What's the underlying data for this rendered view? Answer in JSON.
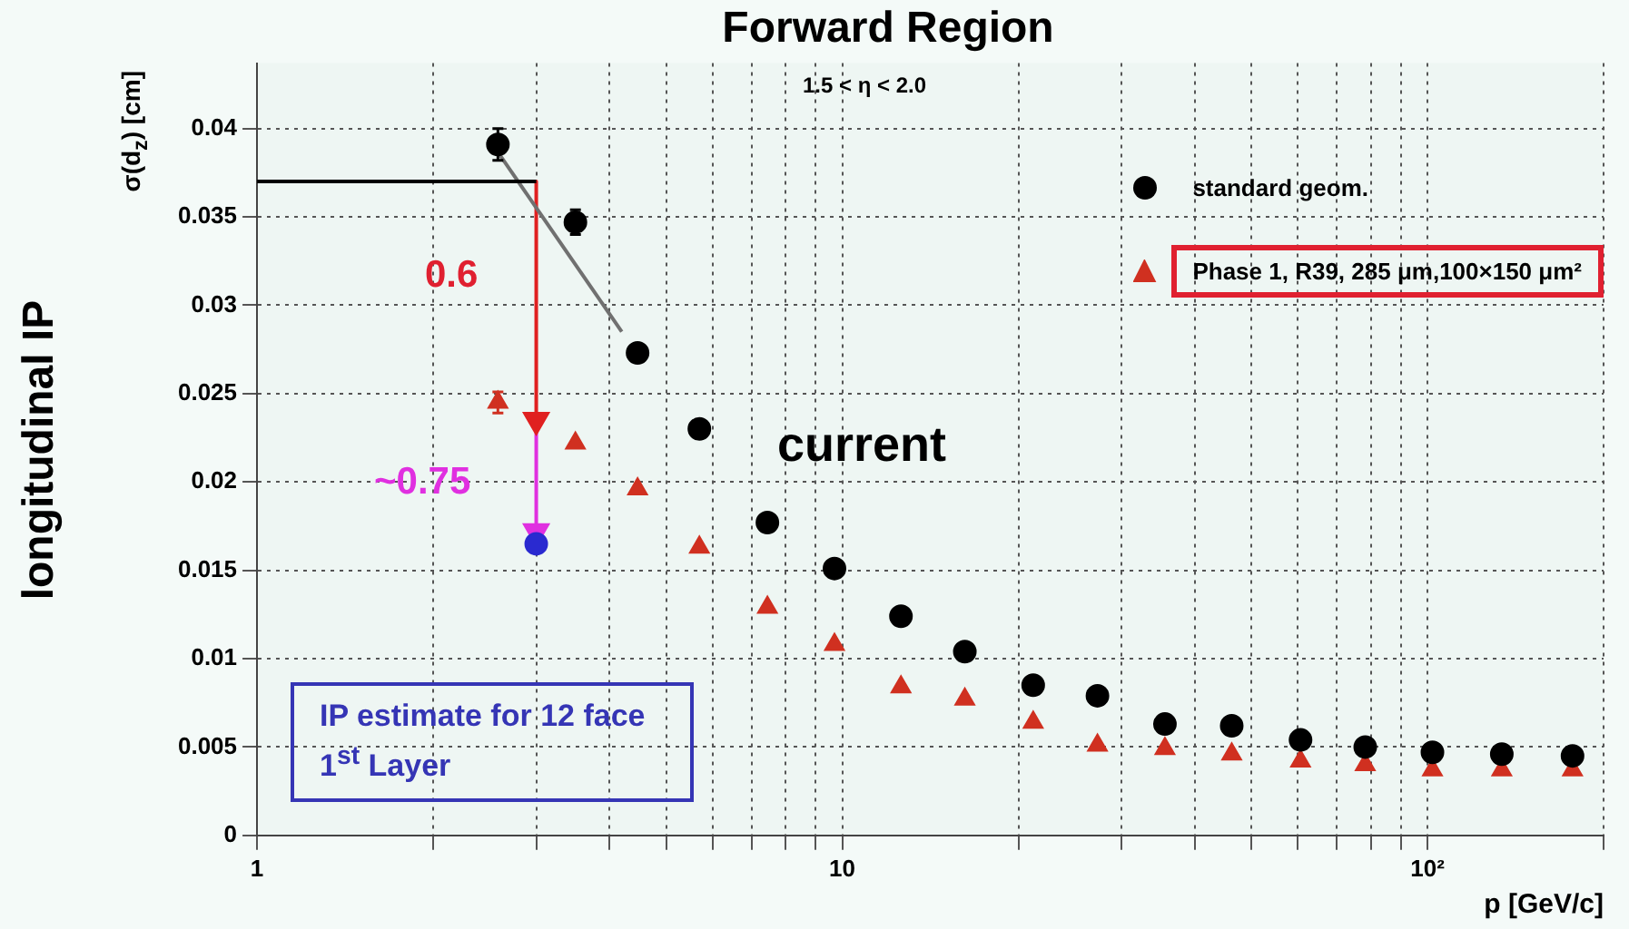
{
  "chart_data": {
    "type": "scatter",
    "title": "Forward Region",
    "xlabel": "p [GeV/c]",
    "ylabel": "σ(d$_{z}$) [cm]",
    "log": "x",
    "xlim": [
      1,
      200
    ],
    "ylim": [
      0,
      0.0437
    ],
    "xticks": [
      1,
      {
        "value": 2,
        "label": null
      },
      {
        "value": 3,
        "label": null
      },
      {
        "value": 4,
        "label": null
      },
      {
        "value": 5,
        "label": null
      },
      {
        "value": 6,
        "label": null
      },
      {
        "value": 7,
        "label": null
      },
      {
        "value": 8,
        "label": null
      },
      {
        "value": 9,
        "label": null
      },
      10,
      {
        "value": 20,
        "label": null
      },
      {
        "value": 30,
        "label": null
      },
      {
        "value": 40,
        "label": null
      },
      {
        "value": 50,
        "label": null
      },
      {
        "value": 60,
        "label": null
      },
      {
        "value": 70,
        "label": null
      },
      {
        "value": 80,
        "label": null
      },
      {
        "value": 90,
        "label": null
      },
      {
        "value": 100,
        "label": "10²"
      },
      {
        "value": 200,
        "label": null
      }
    ],
    "yticks": [
      0,
      0.005,
      0.01,
      0.015,
      0.02,
      0.025,
      0.03,
      0.035,
      0.04
    ],
    "grid": true,
    "legend": "top right",
    "series": [
      {
        "name": "standard geom.",
        "color": "#000000",
        "marker": "circle",
        "x": [
          2.58,
          3.5,
          4.47,
          5.7,
          7.45,
          9.7,
          12.6,
          16.2,
          21.2,
          27.3,
          35.6,
          46.3,
          60.7,
          78.3,
          102,
          134,
          177
        ],
        "values": [
          0.0391,
          0.0347,
          0.0273,
          0.023,
          0.0177,
          0.0151,
          0.0124,
          0.0104,
          0.0085,
          0.0079,
          0.0063,
          0.0062,
          0.0054,
          0.005,
          0.0047,
          0.0046,
          0.0045
        ],
        "errors": [
          0.0009,
          0.0007,
          null,
          null,
          null,
          null,
          null,
          null,
          null,
          null,
          null,
          null,
          null,
          null,
          null,
          null,
          null
        ]
      },
      {
        "name": "Phase 1, R39, 285 μm,100×150 μm²",
        "color": "#d03020",
        "marker": "triangle",
        "x": [
          2.58,
          3.5,
          4.47,
          5.7,
          7.45,
          9.7,
          12.6,
          16.2,
          21.2,
          27.3,
          35.6,
          46.3,
          60.7,
          78.3,
          102,
          134,
          177
        ],
        "values": [
          0.0245,
          0.0222,
          0.0196,
          0.0163,
          0.0129,
          0.0108,
          0.0084,
          0.0077,
          0.0064,
          0.0051,
          0.0049,
          0.0046,
          0.0042,
          0.004,
          0.0037,
          0.0037,
          0.0037
        ],
        "errors": [
          0.0006,
          null,
          null,
          null,
          null,
          null,
          null,
          null,
          null,
          null,
          null,
          null,
          null,
          null,
          null,
          null,
          null
        ]
      },
      {
        "color": "#2a2ad0",
        "marker": "circle",
        "x": [
          3
        ],
        "values": [
          0.0165
        ]
      },
      {
        "type": "line",
        "color": "#000000",
        "marker": "none",
        "x": [
          1,
          3
        ],
        "values": [
          0.037,
          0.037
        ]
      },
      {
        "type": "line",
        "color": "#707070",
        "marker": "none",
        "x": [
          2.6,
          4.2
        ],
        "values": [
          0.0385,
          0.0285
        ]
      },
      {
        "type": "line",
        "color": "#e02020",
        "marker": "triangle",
        "x": [
          3,
          3
        ],
        "values": [
          0.037,
          0.0235
        ]
      },
      {
        "type": "line",
        "color": "#e030e0",
        "marker": "triangle",
        "x": [
          3,
          3
        ],
        "values": [
          0.0232,
          0.0172
        ]
      }
    ],
    "annotations": [
      "1.5 < η < 2.0",
      "current",
      "IP estimate for 12 face 1$^{st}$ Layer",
      "longitudinal IP",
      "0.6",
      "~0.75"
    ]
  }
}
